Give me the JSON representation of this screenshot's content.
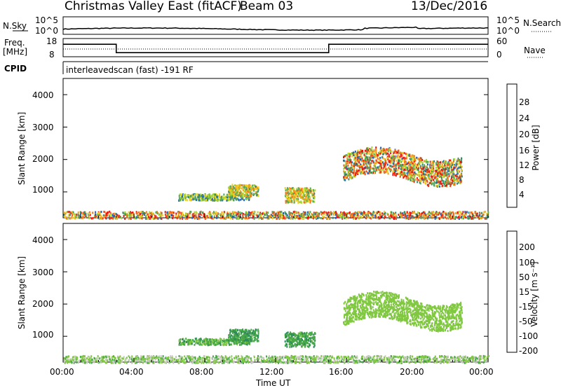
{
  "header": {
    "station": "Christmas Valley East (fitACF)",
    "beam": "Beam 03",
    "date": "13/Dec/2016"
  },
  "nsky_panel": {
    "left_label": "N.Sky",
    "right_label": "N.Search",
    "left_ticks": [
      "10^5",
      "10^0"
    ],
    "right_ticks": [
      "10^5",
      "10^0"
    ]
  },
  "freq_panel": {
    "left_label_1": "Freq.",
    "left_label_2": "[MHz]",
    "right_label": "Nave",
    "left_ticks": [
      "18",
      "8"
    ],
    "right_ticks": [
      "60",
      "0"
    ]
  },
  "cpid": {
    "label": "CPID",
    "value": "interleavedscan (fast) -191 RF"
  },
  "colors": {
    "power_scale": [
      "#1a1aff",
      "#2060c0",
      "#3a8a6a",
      "#55aa55",
      "#a8d830",
      "#f0d020",
      "#f0a020",
      "#f07020",
      "#f03818",
      "#ee1010"
    ],
    "velocity_scale": [
      "#2040c8",
      "#2e62c0",
      "#2e8a5a",
      "#46a846",
      "#80c840",
      "#c8c8c0",
      "#c8c8c0",
      "#f0b040",
      "#f08c20",
      "#f06020",
      "#f02020"
    ]
  },
  "chart_data": [
    {
      "type": "heatmap",
      "name": "power",
      "xlabel": "",
      "ylabel": "Slant Range [km]",
      "yticks": [
        "1000",
        "2000",
        "3000",
        "4000"
      ],
      "ylim": [
        200,
        4500
      ],
      "colorbar": {
        "label": "Power [dB]",
        "ticks": [
          "4",
          "8",
          "12",
          "16",
          "20",
          "24",
          "28"
        ],
        "range": [
          0,
          30
        ]
      }
    },
    {
      "type": "heatmap",
      "name": "velocity",
      "xlabel": "Time UT",
      "ylabel": "Slant Range [km]",
      "xticks": [
        "00:00",
        "04:00",
        "08:00",
        "12:00",
        "16:00",
        "20:00",
        "00:00"
      ],
      "yticks": [
        "1000",
        "2000",
        "3000",
        "4000"
      ],
      "ylim": [
        200,
        4500
      ],
      "colorbar": {
        "label": "Velocity [m s⁻¹]",
        "ticks": [
          "200",
          "100",
          "50",
          "15",
          "-15",
          "-50",
          "-100",
          "-200"
        ]
      }
    }
  ],
  "frequency_steps": {
    "time_hours": [
      0,
      3,
      15,
      24
    ],
    "freq_mhz": [
      15,
      10,
      15,
      15
    ]
  }
}
